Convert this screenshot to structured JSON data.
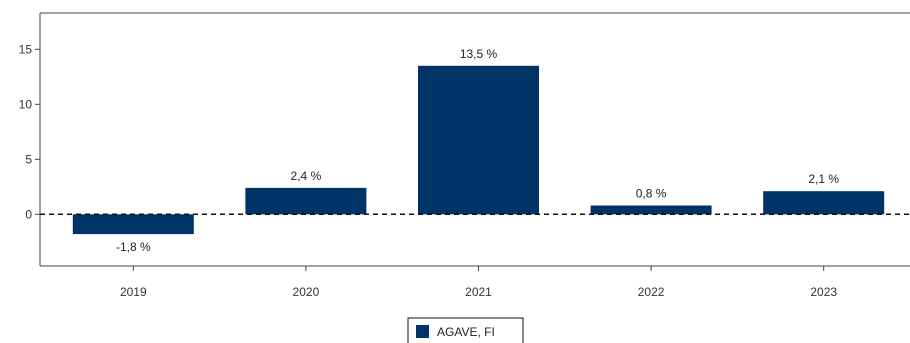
{
  "chart_data": {
    "type": "bar",
    "categories": [
      "2019",
      "2020",
      "2021",
      "2022",
      "2023"
    ],
    "series": [
      {
        "name": "AGAVE, FI",
        "values": [
          -1.8,
          2.4,
          13.5,
          0.8,
          2.1
        ],
        "labels": [
          "-1,8 %",
          "2,4 %",
          "13,5 %",
          "0,8 %",
          "2,1 %"
        ],
        "color": "#003366"
      }
    ],
    "ylim": [
      -4.7,
      18.3
    ],
    "yticks": [
      0,
      5,
      10,
      15
    ],
    "ytick_labels": [
      "0",
      "5",
      "10",
      "15"
    ],
    "zero_line": "dashed",
    "grid": false,
    "legend": "bottom-center"
  }
}
